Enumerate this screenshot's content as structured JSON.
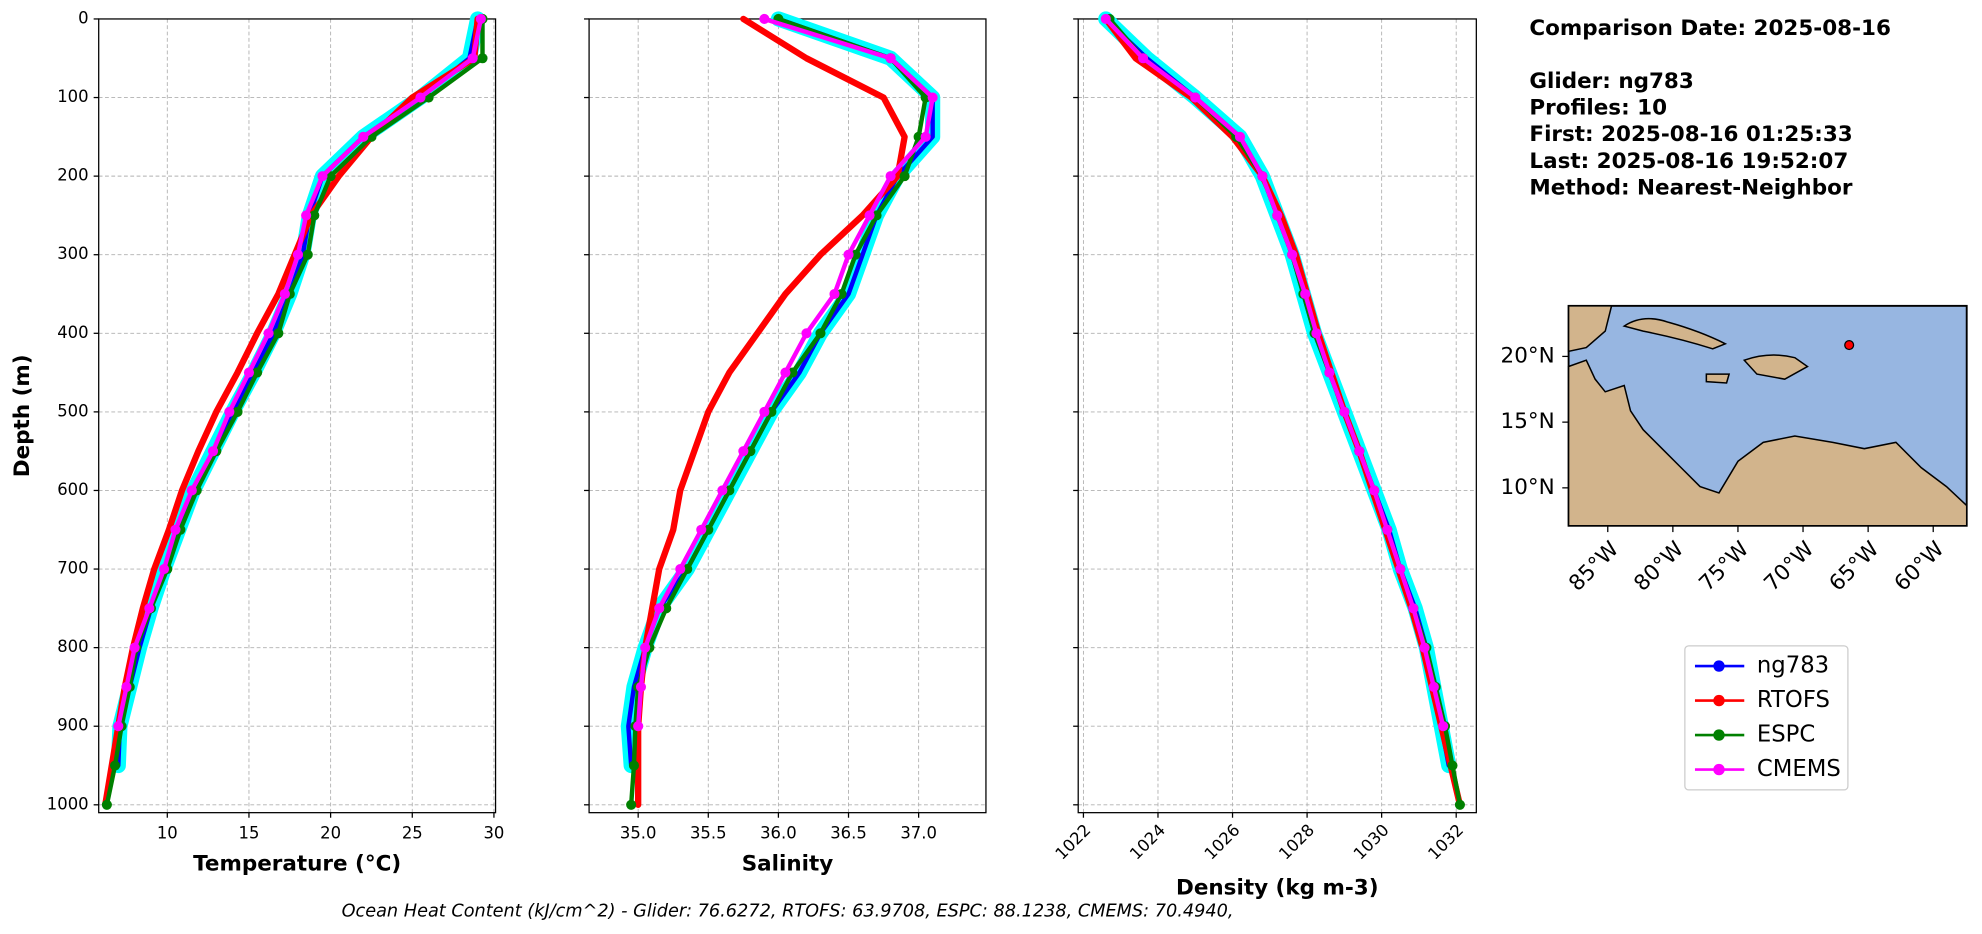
{
  "chart_data": [
    {
      "type": "line",
      "xlabel": "Temperature (°C)",
      "ylabel": "Depth (m)",
      "show_ytick_labels": true,
      "grid": true,
      "y": [
        0,
        50,
        100,
        150,
        200,
        250,
        300,
        350,
        400,
        450,
        500,
        550,
        600,
        650,
        700,
        750,
        800,
        850,
        900,
        950,
        1000
      ],
      "xlim": [
        5.8,
        30.1
      ],
      "xticks": [
        10,
        15,
        20,
        25,
        30
      ],
      "ylim": [
        1010,
        0
      ],
      "yticks": [
        0,
        100,
        200,
        300,
        400,
        500,
        600,
        700,
        800,
        900,
        1000
      ],
      "series": [
        {
          "name": "ng783",
          "color": "#0000ff",
          "marker": false,
          "values": [
            29,
            28.5,
            25.5,
            22,
            19.5,
            18.7,
            18.3,
            17.5,
            16.5,
            15.3,
            14,
            12.8,
            11.6,
            10.7,
            9.8,
            9,
            8.3,
            7.7,
            7.1,
            7,
            null
          ]
        },
        {
          "name": "RTOFS",
          "color": "#ff0000",
          "marker": false,
          "values": [
            29,
            28.8,
            25,
            22.5,
            20.5,
            18.8,
            17.8,
            16.8,
            15.5,
            14.3,
            13,
            11.9,
            10.9,
            10.1,
            9.2,
            8.5,
            7.9,
            7.4,
            7,
            6.6,
            6.2
          ]
        },
        {
          "name": "ESPC",
          "color": "#008000",
          "marker": true,
          "values": [
            29.3,
            29.3,
            26,
            22.5,
            20,
            19,
            18.6,
            17.5,
            16.8,
            15.5,
            14.3,
            13,
            11.8,
            10.8,
            10,
            9,
            8.1,
            7.7,
            7.2,
            6.8,
            6.3
          ]
        },
        {
          "name": "CMEMS",
          "color": "#ff00ff",
          "marker": true,
          "values": [
            29.2,
            28.7,
            25.5,
            22,
            19.5,
            18.5,
            18,
            17.2,
            16.2,
            15,
            13.8,
            12.8,
            11.5,
            10.5,
            9.8,
            8.9,
            8,
            7.5,
            7,
            null,
            null
          ]
        }
      ]
    },
    {
      "type": "line",
      "xlabel": "Salinity",
      "show_ytick_labels": false,
      "grid": true,
      "y": [
        0,
        50,
        100,
        150,
        200,
        250,
        300,
        350,
        400,
        450,
        500,
        550,
        600,
        650,
        700,
        750,
        800,
        850,
        900,
        950,
        1000
      ],
      "xlim": [
        34.65,
        37.48
      ],
      "xticks": [
        {
          "value": 35,
          "label": "35.0"
        },
        35.5,
        {
          "value": 36,
          "label": "36.0"
        },
        36.5,
        {
          "value": 37,
          "label": "37.0"
        }
      ],
      "ylim": [
        1010,
        0
      ],
      "yticks": [
        0,
        100,
        200,
        300,
        400,
        500,
        600,
        700,
        800,
        900,
        1000
      ],
      "series": [
        {
          "name": "ng783",
          "color": "#0000ff",
          "marker": false,
          "values": [
            36.0,
            36.8,
            37.1,
            37.1,
            36.85,
            36.7,
            36.6,
            36.5,
            36.3,
            36.15,
            35.95,
            35.8,
            35.65,
            35.5,
            35.35,
            35.15,
            35.05,
            34.97,
            34.93,
            34.95,
            null
          ]
        },
        {
          "name": "RTOFS",
          "color": "#ff0000",
          "marker": false,
          "values": [
            35.75,
            36.2,
            36.75,
            36.9,
            36.85,
            36.6,
            36.3,
            36.05,
            35.85,
            35.65,
            35.5,
            35.4,
            35.3,
            35.25,
            35.15,
            35.1,
            35.05,
            35.02,
            35.0,
            35.0,
            35.0
          ]
        },
        {
          "name": "ESPC",
          "color": "#008000",
          "marker": true,
          "values": [
            36.0,
            36.8,
            37.05,
            37.0,
            36.9,
            36.7,
            36.55,
            36.45,
            36.3,
            36.1,
            35.95,
            35.8,
            35.65,
            35.5,
            35.35,
            35.2,
            35.08,
            35.0,
            34.98,
            34.97,
            34.95
          ]
        },
        {
          "name": "CMEMS",
          "color": "#ff00ff",
          "marker": true,
          "values": [
            35.9,
            36.8,
            37.1,
            37.05,
            36.8,
            36.65,
            36.5,
            36.4,
            36.2,
            36.05,
            35.9,
            35.75,
            35.6,
            35.45,
            35.3,
            35.15,
            35.05,
            35.02,
            35.0,
            null,
            null
          ]
        }
      ]
    },
    {
      "type": "line",
      "xlabel": "Density (kg m-3)",
      "show_ytick_labels": false,
      "rotate_xticks": true,
      "grid": true,
      "y": [
        0,
        50,
        100,
        150,
        200,
        250,
        300,
        350,
        400,
        450,
        500,
        550,
        600,
        650,
        700,
        750,
        800,
        850,
        900,
        950,
        1000
      ],
      "xlim": [
        1021.86,
        1032.54
      ],
      "xticks": [
        1022,
        1024,
        1026,
        1028,
        1030,
        1032
      ],
      "ylim": [
        1010,
        0
      ],
      "yticks": [
        0,
        100,
        200,
        300,
        400,
        500,
        600,
        700,
        800,
        900,
        1000
      ],
      "series": [
        {
          "name": "ng783",
          "color": "#0000ff",
          "marker": false,
          "values": [
            1022.6,
            1023.7,
            1025.0,
            1026.2,
            1026.8,
            1027.2,
            1027.6,
            1027.9,
            1028.2,
            1028.6,
            1029.0,
            1029.4,
            1029.8,
            1030.2,
            1030.5,
            1030.9,
            1031.2,
            1031.4,
            1031.6,
            1031.8,
            null
          ]
        },
        {
          "name": "RTOFS",
          "color": "#ff0000",
          "marker": false,
          "values": [
            1022.6,
            1023.4,
            1024.9,
            1026.0,
            1026.8,
            1027.3,
            1027.7,
            1028.0,
            1028.3,
            1028.65,
            1029.0,
            1029.4,
            1029.75,
            1030.1,
            1030.45,
            1030.8,
            1031.1,
            1031.35,
            1031.6,
            1031.85,
            1032.1
          ]
        },
        {
          "name": "ESPC",
          "color": "#008000",
          "marker": true,
          "values": [
            1022.7,
            1023.6,
            1025.0,
            1026.1,
            1026.8,
            1027.2,
            1027.6,
            1027.9,
            1028.2,
            1028.6,
            1029.0,
            1029.4,
            1029.8,
            1030.15,
            1030.5,
            1030.85,
            1031.2,
            1031.45,
            1031.7,
            1031.9,
            1032.1
          ]
        },
        {
          "name": "CMEMS",
          "color": "#ff00ff",
          "marker": true,
          "values": [
            1022.6,
            1023.6,
            1025.0,
            1026.2,
            1026.8,
            1027.2,
            1027.6,
            1027.95,
            1028.25,
            1028.6,
            1029.0,
            1029.4,
            1029.8,
            1030.15,
            1030.5,
            1030.85,
            1031.15,
            1031.4,
            1031.65,
            null,
            null
          ]
        }
      ]
    }
  ],
  "info": {
    "comparison_date": "Comparison Date: 2025-08-16",
    "glider": "Glider: ng783",
    "profiles": "Profiles: 10",
    "first": "First: 2025-08-16 01:25:33",
    "last": "Last: 2025-08-16 19:52:07",
    "method": "Method: Nearest-Neighbor"
  },
  "map": {
    "lat_labels": [
      "20°N",
      "15°N",
      "10°N"
    ],
    "lon_labels": [
      "85°W",
      "80°W",
      "75°W",
      "70°W",
      "65°W",
      "60°W"
    ]
  },
  "footer": "Ocean Heat Content (kJ/cm^2) - Glider: 76.6272,  RTOFS: 63.9708,  ESPC: 88.1238,  CMEMS: 70.4940,"
}
